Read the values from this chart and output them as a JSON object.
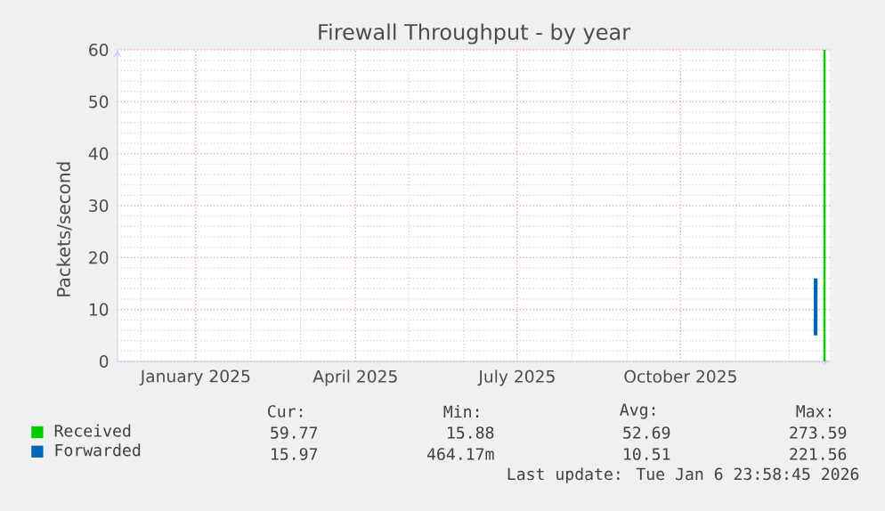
{
  "chart_data": {
    "type": "line",
    "title": "Firewall Throughput - by year",
    "ylabel": "Packets/second",
    "xlim": [
      "2024-11-18",
      "2025-12-24"
    ],
    "xticks": [
      {
        "value": "2025-01-01",
        "label": "January 2025"
      },
      {
        "value": "2025-04-01",
        "label": "April 2025"
      },
      {
        "value": "2025-07-01",
        "label": "July 2025"
      },
      {
        "value": "2025-10-01",
        "label": "October 2025"
      }
    ],
    "ylim": [
      0,
      60
    ],
    "yticks": [
      0,
      10,
      20,
      30,
      40,
      50,
      60
    ],
    "grid": true,
    "legend": "bottom left",
    "series": [
      {
        "name": "Received",
        "color": "#00cc00",
        "x": [
          "2025-12-21T00:00",
          "2025-12-21T01:00"
        ],
        "values": [
          0,
          60
        ]
      },
      {
        "name": "Forwarded",
        "color": "#0066b3",
        "x": [
          "2025-12-16T00:00",
          "2025-12-16T01:00"
        ],
        "values": [
          5,
          16
        ]
      }
    ],
    "annotations": [
      "Cur:",
      "Min:",
      "Avg:",
      "Max:",
      "59.77",
      "15.88",
      "52.69",
      "273.59",
      "15.97",
      "464.17m",
      "10.51",
      "221.56",
      "Last update: Tue Jan  6 23:58:45 2026"
    ]
  }
}
